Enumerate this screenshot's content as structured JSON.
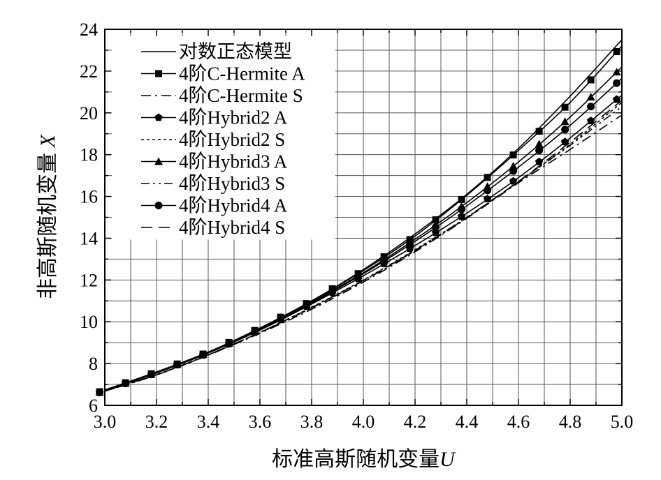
{
  "chart_data": {
    "type": "line",
    "xlabel_prefix": "标准高斯随机变量",
    "xlabel_var": "U",
    "ylabel_prefix": "非高斯随机变量 ",
    "ylabel_var": "X",
    "xlim": [
      3.0,
      5.0
    ],
    "ylim": [
      6,
      24
    ],
    "xticks": [
      3.0,
      3.2,
      3.4,
      3.6,
      3.8,
      4.0,
      4.2,
      4.4,
      4.6,
      4.8,
      5.0
    ],
    "xtick_labels": [
      "3.0",
      "3.2",
      "3.4",
      "3.6",
      "3.8",
      "4.0",
      "4.2",
      "4.4",
      "4.6",
      "4.8",
      "5.0"
    ],
    "yticks": [
      6,
      8,
      10,
      12,
      14,
      16,
      18,
      20,
      22,
      24
    ],
    "ytick_labels": [
      "6",
      "8",
      "10",
      "12",
      "14",
      "16",
      "18",
      "20",
      "22",
      "24"
    ],
    "grid": true,
    "legend_position": "top-left",
    "marker_x": [
      2.98,
      3.08,
      3.18,
      3.28,
      3.38,
      3.48,
      3.58,
      3.68,
      3.78,
      3.88,
      3.98,
      4.08,
      4.18,
      4.28,
      4.38,
      4.48,
      4.58,
      4.68,
      4.78,
      4.88,
      4.98
    ],
    "series": [
      {
        "name": "对数正态模型",
        "style": "solid",
        "marker": "none",
        "x": [
          2.98,
          3.2,
          3.4,
          3.6,
          3.8,
          4.0,
          4.2,
          4.4,
          4.6,
          4.8,
          5.0
        ],
        "y": [
          6.65,
          7.6,
          8.55,
          9.7,
          11.0,
          12.5,
          14.2,
          16.1,
          18.3,
          20.8,
          23.5
        ]
      },
      {
        "name": "4阶C-Hermite A",
        "style": "solid",
        "marker": "square",
        "x": [
          2.98,
          3.2,
          3.4,
          3.6,
          3.8,
          4.0,
          4.2,
          4.4,
          4.6,
          4.8,
          5.0
        ],
        "y": [
          6.65,
          7.6,
          8.55,
          9.7,
          11.0,
          12.45,
          14.1,
          16.05,
          18.2,
          20.5,
          23.2
        ]
      },
      {
        "name": "4阶C-Hermite S",
        "style": "dashdot",
        "marker": "none",
        "x": [
          2.98,
          3.2,
          3.4,
          3.6,
          3.8,
          4.0,
          4.2,
          4.4,
          4.6,
          4.8,
          5.0
        ],
        "y": [
          6.6,
          7.45,
          8.4,
          9.45,
          10.6,
          11.9,
          13.35,
          14.95,
          16.65,
          18.25,
          19.9
        ]
      },
      {
        "name": "4阶Hybrid2 A",
        "style": "solid",
        "marker": "pentagon",
        "x": [
          2.98,
          3.2,
          3.4,
          3.6,
          3.8,
          4.0,
          4.2,
          4.4,
          4.6,
          4.8,
          5.0
        ],
        "y": [
          6.62,
          7.55,
          8.5,
          9.6,
          10.85,
          12.2,
          13.65,
          15.2,
          16.9,
          18.8,
          20.85
        ]
      },
      {
        "name": "4阶Hybrid2 S",
        "style": "dotted",
        "marker": "none",
        "x": [
          2.98,
          3.2,
          3.4,
          3.6,
          3.8,
          4.0,
          4.2,
          4.4,
          4.6,
          4.8,
          5.0
        ],
        "y": [
          6.6,
          7.48,
          8.42,
          9.5,
          10.7,
          12.0,
          13.45,
          15.0,
          16.7,
          18.5,
          20.5
        ]
      },
      {
        "name": "4阶Hybrid3 A",
        "style": "solid",
        "marker": "triangle",
        "x": [
          2.98,
          3.2,
          3.4,
          3.6,
          3.8,
          4.0,
          4.2,
          4.4,
          4.6,
          4.8,
          5.0
        ],
        "y": [
          6.63,
          7.58,
          8.53,
          9.65,
          10.95,
          12.35,
          13.95,
          15.7,
          17.65,
          19.8,
          22.2
        ]
      },
      {
        "name": "4阶Hybrid3 S",
        "style": "dashdotdot",
        "marker": "none",
        "x": [
          2.98,
          3.2,
          3.4,
          3.6,
          3.8,
          4.0,
          4.2,
          4.4,
          4.6,
          4.8,
          5.0
        ],
        "y": [
          6.6,
          7.46,
          8.41,
          9.48,
          10.66,
          11.96,
          13.4,
          14.98,
          16.7,
          18.45,
          20.3
        ]
      },
      {
        "name": "4阶Hybrid4 A",
        "style": "solid",
        "marker": "circle",
        "x": [
          2.98,
          3.2,
          3.4,
          3.6,
          3.8,
          4.0,
          4.2,
          4.4,
          4.6,
          4.8,
          5.0
        ],
        "y": [
          6.62,
          7.57,
          8.52,
          9.63,
          10.9,
          12.3,
          13.85,
          15.55,
          17.4,
          19.4,
          21.65
        ]
      },
      {
        "name": "4阶Hybrid4 S",
        "style": "dashed",
        "marker": "none",
        "x": [
          2.98,
          3.2,
          3.4,
          3.6,
          3.8,
          4.0,
          4.2,
          4.4,
          4.6,
          4.8,
          5.0
        ],
        "y": [
          6.6,
          7.47,
          8.42,
          9.49,
          10.68,
          11.98,
          13.42,
          15.0,
          16.72,
          18.6,
          20.6
        ]
      }
    ]
  }
}
